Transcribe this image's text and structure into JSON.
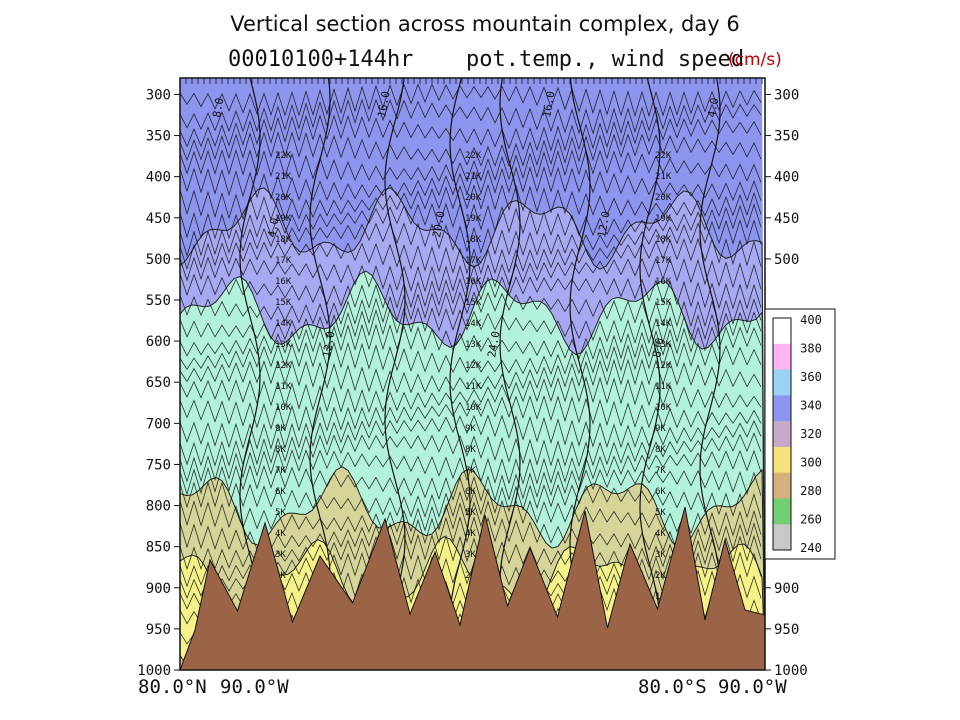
{
  "slide": {
    "title": "Vertical section across mountain complex, day 6",
    "run_label": "00010100+144hr",
    "field_label": "pot.temp., wind speed",
    "units_label": "(cm/s)"
  },
  "chart_data": {
    "type": "heatmap",
    "y_axis": {
      "label": "",
      "ticks": [
        300,
        350,
        400,
        450,
        500,
        550,
        600,
        650,
        700,
        750,
        800,
        850,
        900,
        950,
        1000
      ],
      "right_ticks": [
        300,
        350,
        400,
        450,
        500,
        900,
        950,
        1000
      ],
      "range": [
        280,
        1000
      ],
      "inverted": true
    },
    "x_axis": {
      "start": [
        "80.0°N",
        "90.0°W"
      ],
      "end": [
        "80.0°S",
        "90.0°W"
      ]
    },
    "colorbar": {
      "ticks": [
        400,
        380,
        360,
        340,
        320,
        300,
        280,
        260,
        240
      ],
      "colors": [
        "#ffffff",
        "#ffb3f0",
        "#9ad2f5",
        "#8d95ee",
        "#c8a8c8",
        "#f5e27a",
        "#d4b07a",
        "#72d072",
        "#c8c8c8"
      ]
    },
    "field_colors": {
      "top": "#8d95ee",
      "upper": "#a7aaf2",
      "mid": "#b3f2da",
      "lower": "#d5d59a",
      "yellow": "#f5f28a",
      "low": "#f2c28a",
      "terrain": "#9b6447"
    },
    "contour_labels": {
      "wind": [
        "8.0",
        "4.0",
        "12.0",
        "16.0",
        "20.0",
        "24.0",
        "16.0",
        "12.0",
        "8.0",
        "4.0"
      ],
      "temp": [
        "22K",
        "21K",
        "20K",
        "19K",
        "18K",
        "17K",
        "16K",
        "15K",
        "14K",
        "13K",
        "12K",
        "11K",
        "10K",
        "9K",
        "8K",
        "7K",
        "6K",
        "5K",
        "4K",
        "3K",
        "2K",
        "1K"
      ]
    }
  }
}
